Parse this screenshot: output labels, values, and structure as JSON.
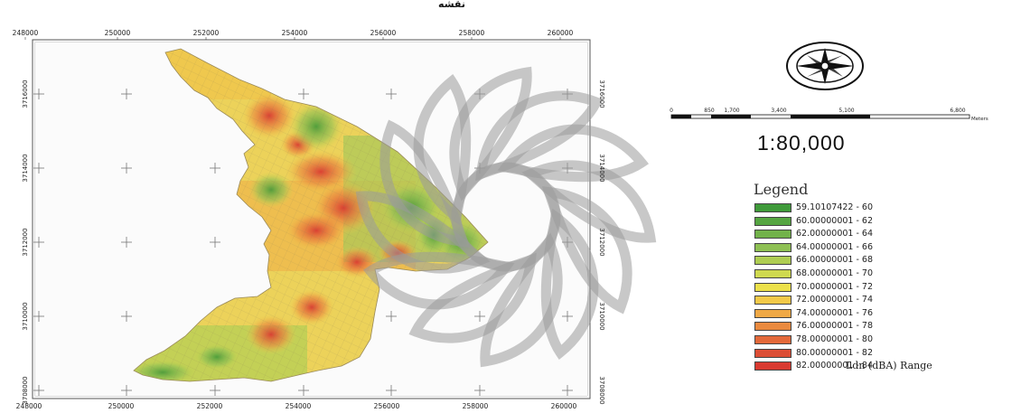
{
  "header": {
    "title": "ﻧﻘﺸﻪ ﺗﻮﺯﻳﻊ"
  },
  "map": {
    "x_ticks": [
      "248000",
      "250000",
      "252000",
      "254000",
      "256000",
      "258000",
      "260000"
    ],
    "y_ticks": [
      "3716000",
      "3714000",
      "3712000",
      "3710000",
      "3708000"
    ],
    "north_arrow_icon": "compass-rose-icon"
  },
  "scalebar": {
    "labels": [
      "0",
      "850",
      "1,700",
      "3,400",
      "5,100",
      "6,800"
    ],
    "unit": "Meters",
    "ratio": "1:80,000"
  },
  "legend": {
    "title": "Legend",
    "range_label": "Ldn (dBA) Range",
    "items": [
      {
        "label": "59.10107422 - 60",
        "color": "#3f9a3a"
      },
      {
        "label": "60.00000001 - 62",
        "color": "#55a541"
      },
      {
        "label": "62.00000001 - 64",
        "color": "#72b24a"
      },
      {
        "label": "64.00000001 - 66",
        "color": "#8ec053"
      },
      {
        "label": "66.00000001 - 68",
        "color": "#aecd52"
      },
      {
        "label": "68.00000001 - 70",
        "color": "#cfd94f"
      },
      {
        "label": "70.00000001 - 72",
        "color": "#ece14a"
      },
      {
        "label": "72.00000001 - 74",
        "color": "#f2c949"
      },
      {
        "label": "74.00000001 - 76",
        "color": "#f0a946"
      },
      {
        "label": "76.00000001 - 78",
        "color": "#ea8a3f"
      },
      {
        "label": "78.00000001 - 80",
        "color": "#e3693a"
      },
      {
        "label": "80.00000001 - 82",
        "color": "#dc4d35"
      },
      {
        "label": "82.00000001 - 84",
        "color": "#d93a31"
      }
    ]
  }
}
